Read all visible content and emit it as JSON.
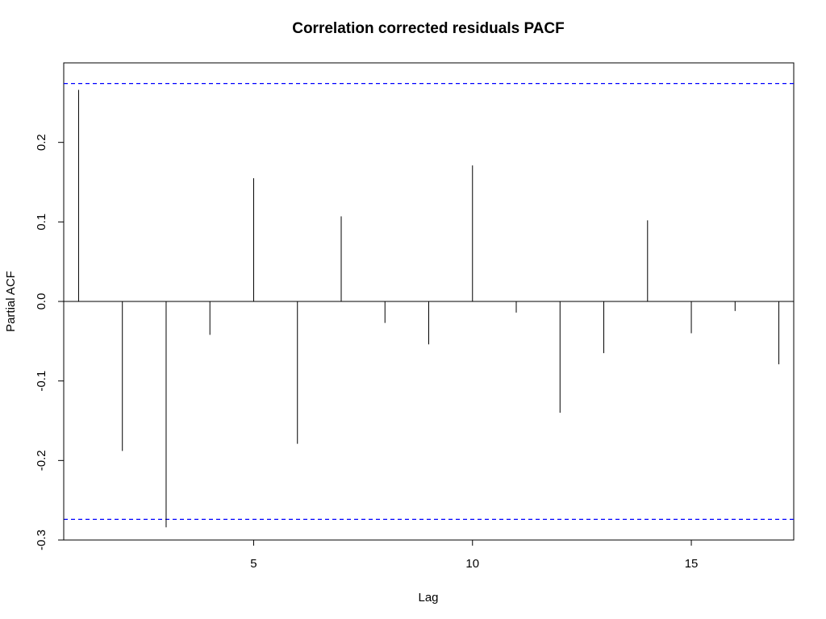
{
  "chart_data": {
    "type": "bar",
    "title": "Correlation corrected residuals PACF",
    "xlabel": "Lag",
    "ylabel": "Partial ACF",
    "x": [
      1,
      2,
      3,
      4,
      5,
      6,
      7,
      8,
      9,
      10,
      11,
      12,
      13,
      14,
      15,
      16,
      17
    ],
    "values": [
      0.266,
      -0.188,
      -0.284,
      -0.042,
      0.155,
      -0.179,
      0.107,
      -0.027,
      -0.054,
      0.171,
      -0.014,
      -0.14,
      -0.065,
      0.102,
      -0.04,
      -0.012,
      -0.079
    ],
    "xlim": [
      0.66,
      17.34
    ],
    "ylim": [
      -0.3,
      0.3
    ],
    "x_ticks": [
      5,
      10,
      15
    ],
    "y_ticks": [
      -0.3,
      -0.2,
      -0.1,
      0.0,
      0.1,
      0.2
    ],
    "x_tick_labels": [
      "5",
      "10",
      "15"
    ],
    "y_tick_labels": [
      "-0.3",
      "-0.2",
      "-0.1",
      "0.0",
      "0.1",
      "0.2"
    ],
    "confidence_bounds": [
      0.274,
      -0.274
    ],
    "colors": {
      "bars": "#000000",
      "confidence_bounds": "#0000ff",
      "axes": "#000000"
    },
    "grid": false,
    "legend": "none"
  }
}
